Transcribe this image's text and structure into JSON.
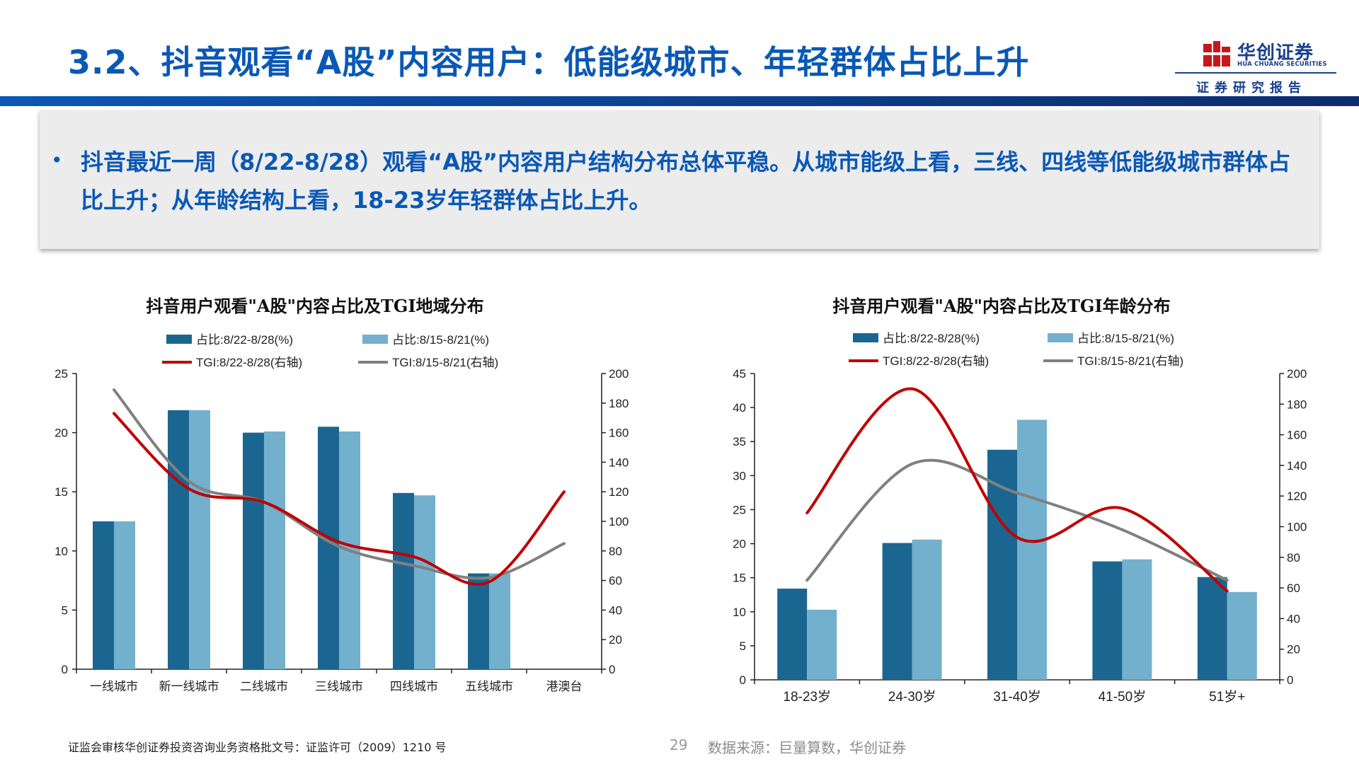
{
  "page": {
    "title": "3.2、抖音观看“A股”内容用户：低能级城市、年轻群体占比上升",
    "summary": "抖音最近一周（8/22-8/28）观看“A股”内容用户结构分布总体平稳。从城市能级上看，三线、四线等低能级城市群体占比上升；从年龄结构上看，18-23岁年轻群体占比上升。",
    "bullet": "•",
    "footer_note": "证监会审核华创证券投资咨询业务资格批文号：证监许可（2009）1210 号",
    "page_number": "29",
    "source": "数据来源：巨量算数，华创证券"
  },
  "logo": {
    "name_cn": "华创证券",
    "name_en": "HUA CHUANG SECURITIES",
    "subtitle": "证券研究报告"
  },
  "colors": {
    "title": "#0a58b5",
    "bar_current": "#1b6690",
    "bar_prev": "#73b0cd",
    "tgi_current": "#c00000",
    "tgi_prev": "#808080"
  },
  "chart_data": [
    {
      "type": "bar",
      "title": "抖音用户观看\"A股\"内容占比及TGI地域分布",
      "categories": [
        "一线城市",
        "新一线城市",
        "二线城市",
        "三线城市",
        "四线城市",
        "五线城市",
        "港澳台"
      ],
      "series": [
        {
          "name": "占比:8/22-8/28(%)",
          "type": "bar",
          "axis": "left",
          "values": [
            12.5,
            21.9,
            20.0,
            20.5,
            14.9,
            8.1,
            null
          ]
        },
        {
          "name": "占比:8/15-8/21(%)",
          "type": "bar",
          "axis": "left",
          "values": [
            12.5,
            21.9,
            20.1,
            20.1,
            14.7,
            8.1,
            null
          ]
        },
        {
          "name": "TGI:8/22-8/28(右轴)",
          "type": "line",
          "axis": "right",
          "values": [
            173,
            122,
            113,
            86,
            76,
            59,
            120
          ]
        },
        {
          "name": "TGI:8/15-8/21(右轴)",
          "type": "line",
          "axis": "right",
          "values": [
            189,
            127,
            113,
            83,
            70,
            62,
            85
          ]
        }
      ],
      "ylim": [
        0,
        25
      ],
      "yticks": [
        0,
        5,
        10,
        15,
        20,
        25
      ],
      "y2lim": [
        0,
        200
      ],
      "y2ticks": [
        0,
        20,
        40,
        60,
        80,
        100,
        120,
        140,
        160,
        180,
        200
      ],
      "legend": "top"
    },
    {
      "type": "bar",
      "title": "抖音用户观看\"A股\"内容占比及TGI年龄分布",
      "categories": [
        "18-23岁",
        "24-30岁",
        "31-40岁",
        "41-50岁",
        "51岁+"
      ],
      "series": [
        {
          "name": "占比:8/22-8/28(%)",
          "type": "bar",
          "axis": "left",
          "values": [
            13.4,
            20.1,
            33.8,
            17.4,
            15.1
          ]
        },
        {
          "name": "占比:8/15-8/21(%)",
          "type": "bar",
          "axis": "left",
          "values": [
            10.3,
            20.6,
            38.2,
            17.7,
            12.9
          ]
        },
        {
          "name": "TGI:8/22-8/28(右轴)",
          "type": "line",
          "axis": "right",
          "values": [
            109,
            190,
            93,
            112,
            58
          ]
        },
        {
          "name": "TGI:8/15-8/21(右轴)",
          "type": "line",
          "axis": "right",
          "values": [
            65,
            141,
            122,
            98,
            65
          ]
        }
      ],
      "ylim": [
        0,
        45
      ],
      "yticks": [
        0,
        5,
        10,
        15,
        20,
        25,
        30,
        35,
        40,
        45
      ],
      "y2lim": [
        0,
        200
      ],
      "y2ticks": [
        0,
        20,
        40,
        60,
        80,
        100,
        120,
        140,
        160,
        180,
        200
      ],
      "legend": "top"
    }
  ]
}
